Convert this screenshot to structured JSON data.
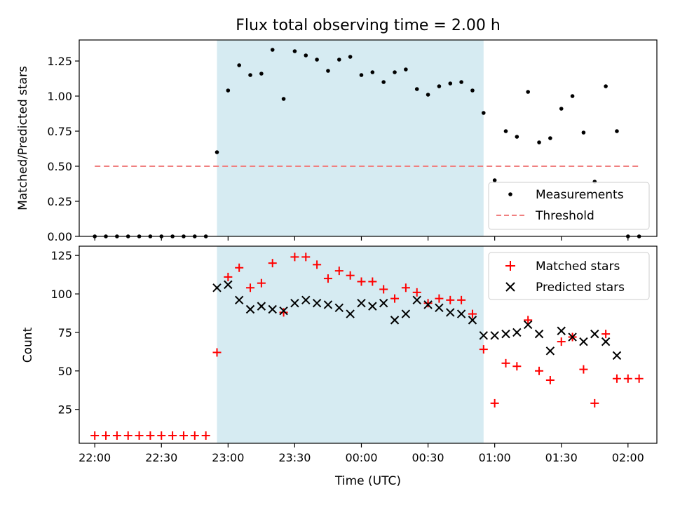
{
  "figure": {
    "title": "Flux total observing time = 2.00 h"
  },
  "chart_data": [
    {
      "type": "scatter",
      "panel": "top",
      "ylabel": "Matched/Predicted stars",
      "ylim": [
        0,
        1.4
      ],
      "yticks": [
        0,
        0.25,
        0.5,
        0.75,
        1.0,
        1.25
      ],
      "ytick_labels": [
        "0.00",
        "0.25",
        "0.50",
        "0.75",
        "1.00",
        "1.25"
      ],
      "shaded_span": [
        "22:55",
        "00:55"
      ],
      "shaded_color": "#add8e6",
      "legend_position": "lower right",
      "series": [
        {
          "name": "Measurements",
          "marker": "dot",
          "color": "#000000",
          "x": [
            "22:00",
            "22:05",
            "22:10",
            "22:15",
            "22:20",
            "22:25",
            "22:30",
            "22:35",
            "22:40",
            "22:45",
            "22:50",
            "22:55",
            "23:00",
            "23:05",
            "23:10",
            "23:15",
            "23:20",
            "23:25",
            "23:30",
            "23:35",
            "23:40",
            "23:45",
            "23:50",
            "23:55",
            "00:00",
            "00:05",
            "00:10",
            "00:15",
            "00:20",
            "00:25",
            "00:30",
            "00:35",
            "00:40",
            "00:45",
            "00:50",
            "00:55",
            "01:00",
            "01:05",
            "01:10",
            "01:15",
            "01:20",
            "01:25",
            "01:30",
            "01:35",
            "01:40",
            "01:45",
            "01:50",
            "01:55",
            "02:00",
            "02:05"
          ],
          "y": [
            0,
            0,
            0,
            0,
            0,
            0,
            0,
            0,
            0,
            0,
            0,
            0.6,
            1.04,
            1.22,
            1.15,
            1.16,
            1.33,
            0.98,
            1.32,
            1.29,
            1.26,
            1.18,
            1.26,
            1.28,
            1.15,
            1.17,
            1.1,
            1.17,
            1.19,
            1.05,
            1.01,
            1.07,
            1.09,
            1.1,
            1.04,
            0.88,
            0.4,
            0.75,
            0.71,
            1.03,
            0.67,
            0.7,
            0.91,
            1.0,
            0.74,
            0.39,
            1.07,
            0.75,
            0,
            0
          ]
        },
        {
          "name": "Threshold",
          "style": "dashed",
          "color": "#f08080",
          "x": [
            "22:00",
            "02:05"
          ],
          "y": [
            0.5,
            0.5
          ]
        }
      ]
    },
    {
      "type": "scatter",
      "panel": "bottom",
      "xlabel": "Time (UTC)",
      "ylabel": "Count",
      "ylim": [
        3,
        131
      ],
      "yticks": [
        25,
        50,
        75,
        100,
        125
      ],
      "ytick_labels": [
        "25",
        "50",
        "75",
        "100",
        "125"
      ],
      "xticks": [
        "22:00",
        "22:30",
        "23:00",
        "23:30",
        "00:00",
        "00:30",
        "01:00",
        "01:30",
        "02:00"
      ],
      "xlim": [
        "21:53",
        "02:13"
      ],
      "shaded_span": [
        "22:55",
        "00:55"
      ],
      "shaded_color": "#add8e6",
      "legend_position": "upper right",
      "series": [
        {
          "name": "Matched stars",
          "marker": "plus",
          "color": "#ff0000",
          "x": [
            "22:00",
            "22:05",
            "22:10",
            "22:15",
            "22:20",
            "22:25",
            "22:30",
            "22:35",
            "22:40",
            "22:45",
            "22:50",
            "22:55",
            "23:00",
            "23:05",
            "23:10",
            "23:15",
            "23:20",
            "23:25",
            "23:30",
            "23:35",
            "23:40",
            "23:45",
            "23:50",
            "23:55",
            "00:00",
            "00:05",
            "00:10",
            "00:15",
            "00:20",
            "00:25",
            "00:30",
            "00:35",
            "00:40",
            "00:45",
            "00:50",
            "00:55",
            "01:00",
            "01:05",
            "01:10",
            "01:15",
            "01:20",
            "01:25",
            "01:30",
            "01:35",
            "01:40",
            "01:45",
            "01:50",
            "01:55",
            "02:00",
            "02:05"
          ],
          "y": [
            8,
            8,
            8,
            8,
            8,
            8,
            8,
            8,
            8,
            8,
            8,
            62,
            111,
            117,
            104,
            107,
            120,
            88,
            124,
            124,
            119,
            110,
            115,
            112,
            108,
            108,
            103,
            97,
            104,
            101,
            94,
            97,
            96,
            96,
            87,
            64,
            29,
            55,
            53,
            83,
            50,
            44,
            69,
            72,
            51,
            29,
            74,
            45,
            45,
            45
          ]
        },
        {
          "name": "Predicted stars",
          "marker": "x",
          "color": "#000000",
          "x": [
            "22:55",
            "23:00",
            "23:05",
            "23:10",
            "23:15",
            "23:20",
            "23:25",
            "23:30",
            "23:35",
            "23:40",
            "23:45",
            "23:50",
            "23:55",
            "00:00",
            "00:05",
            "00:10",
            "00:15",
            "00:20",
            "00:25",
            "00:30",
            "00:35",
            "00:40",
            "00:45",
            "00:50",
            "00:55",
            "01:00",
            "01:05",
            "01:10",
            "01:15",
            "01:20",
            "01:25",
            "01:30",
            "01:35",
            "01:40",
            "01:45",
            "01:50",
            "01:55"
          ],
          "y": [
            104,
            106,
            96,
            90,
            92,
            90,
            89,
            94,
            96,
            94,
            93,
            91,
            87,
            94,
            92,
            94,
            83,
            87,
            96,
            93,
            91,
            88,
            87,
            83,
            73,
            73,
            74,
            75,
            80,
            74,
            63,
            76,
            72,
            69,
            74,
            69,
            60
          ]
        }
      ]
    }
  ]
}
